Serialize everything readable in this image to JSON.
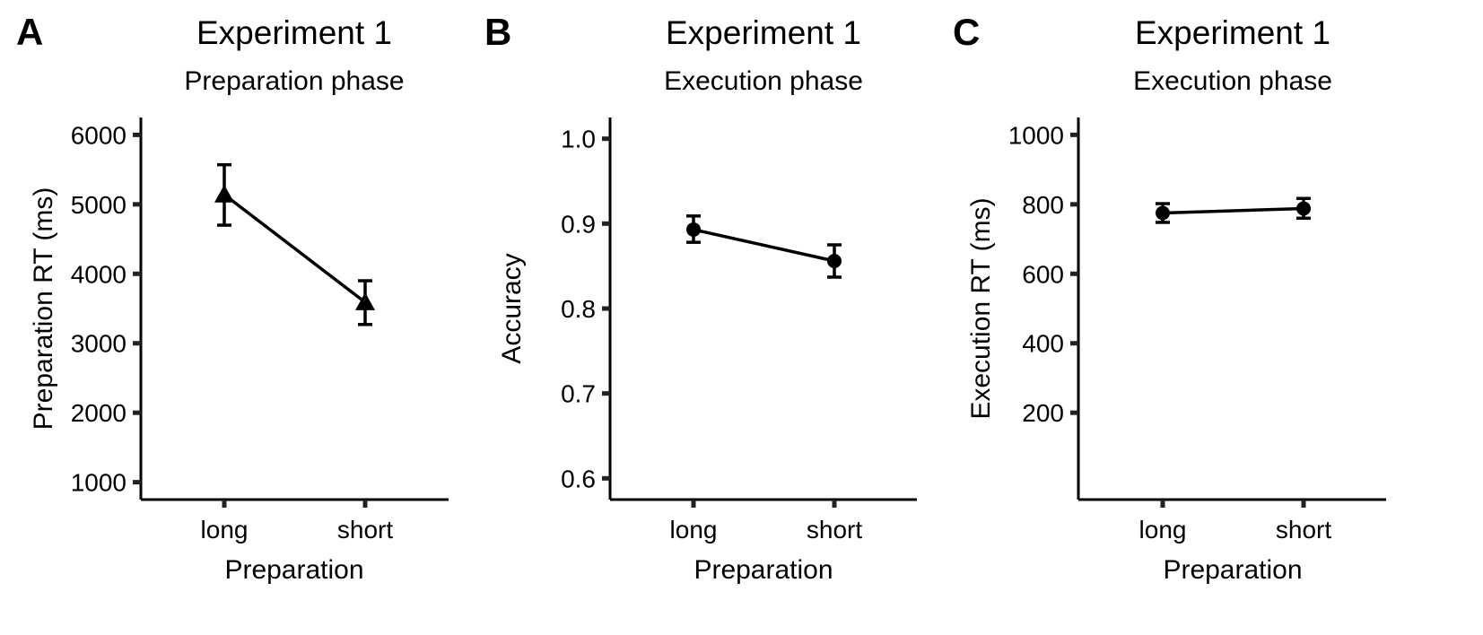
{
  "chart_data": [
    {
      "panel": "A",
      "type": "line",
      "title": "Experiment 1",
      "subtitle": "Preparation phase",
      "xlabel": "Preparation",
      "ylabel": "Preparation RT (ms)",
      "categories": [
        "long",
        "short"
      ],
      "yticks": [
        1000,
        2000,
        3000,
        4000,
        5000,
        6000
      ],
      "ylim": [
        750,
        6250
      ],
      "marker": "triangle",
      "values": [
        5140,
        3590
      ],
      "error": [
        [
          4700,
          5570
        ],
        [
          3270,
          3900
        ]
      ]
    },
    {
      "panel": "B",
      "type": "line",
      "title": "Experiment 1",
      "subtitle": "Execution phase",
      "xlabel": "Preparation",
      "ylabel": "Accuracy",
      "categories": [
        "long",
        "short"
      ],
      "yticks": [
        "0.6",
        "0.7",
        "0.8",
        "0.9",
        "1.0"
      ],
      "ylim": [
        0.575,
        1.025
      ],
      "marker": "circle",
      "values": [
        0.893,
        0.856
      ],
      "error": [
        [
          0.878,
          0.909
        ],
        [
          0.837,
          0.875
        ]
      ]
    },
    {
      "panel": "C",
      "type": "line",
      "title": "Experiment 1",
      "subtitle": "Execution phase",
      "xlabel": "Preparation",
      "ylabel": "Execution RT (ms)",
      "categories": [
        "long",
        "short"
      ],
      "yticks": [
        200,
        400,
        600,
        800,
        1000
      ],
      "ylim": [
        -50,
        1050
      ],
      "marker": "circle",
      "values": [
        775,
        788
      ],
      "error": [
        [
          748,
          802
        ],
        [
          760,
          817
        ]
      ]
    }
  ],
  "colors": {
    "ink": "#000000",
    "axis": "#222222",
    "background": "#ffffff"
  }
}
